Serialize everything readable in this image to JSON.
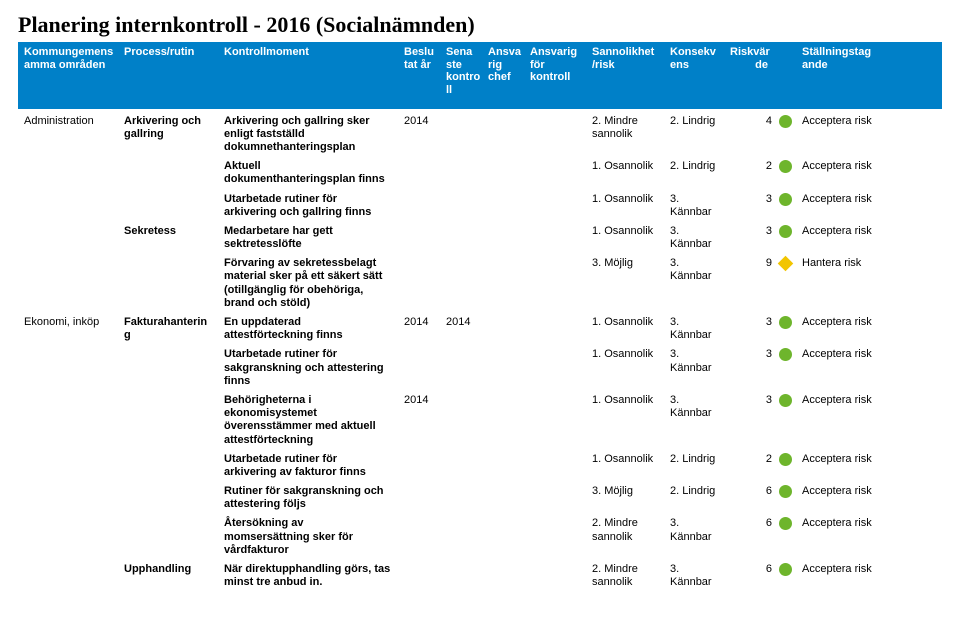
{
  "title": "Planering internkontroll - 2016 (Socialnämnden)",
  "colors": {
    "header_bg": "#0080c8",
    "green": "#6eb52c",
    "yellow": "#f2c500"
  },
  "headers": {
    "area": "Kommungemens\namma områden",
    "proc": "Process/rutin",
    "moment": "Kontrollmoment",
    "year": "Beslu\ntat år",
    "sena": "Sena\nste\nkontro\nll",
    "ansr": "Ansva\nrig\nchef",
    "ansf": "Ansvarig\nför\nkontroll",
    "sann": "Sannolikhet\n/risk",
    "kons": "Konsekv\nens",
    "riskv": "Riskvär\nde",
    "stall": "Ställningstag\nande"
  },
  "rows": [
    {
      "area": "Administration",
      "proc": "Arkivering och gallring",
      "moment": "Arkivering och gallring sker enligt fastställd dokumnethanteringsplan",
      "year": "2014",
      "sena": "",
      "ansr": "",
      "ansf": "",
      "sann": "2. Mindre sannolik",
      "kons": "2. Lindrig",
      "riskv": "4",
      "ind": {
        "shape": "circle",
        "color": "green"
      },
      "stall": "Acceptera risk"
    },
    {
      "area": "",
      "proc": "",
      "moment": "Aktuell dokumenthanteringsplan finns",
      "year": "",
      "sena": "",
      "ansr": "",
      "ansf": "",
      "sann": "1. Osannolik",
      "kons": "2. Lindrig",
      "riskv": "2",
      "ind": {
        "shape": "circle",
        "color": "green"
      },
      "stall": "Acceptera risk"
    },
    {
      "area": "",
      "proc": "",
      "moment": "Utarbetade rutiner för arkivering och gallring finns",
      "year": "",
      "sena": "",
      "ansr": "",
      "ansf": "",
      "sann": "1. Osannolik",
      "kons": "3. Kännbar",
      "riskv": "3",
      "ind": {
        "shape": "circle",
        "color": "green"
      },
      "stall": "Acceptera risk"
    },
    {
      "area": "",
      "proc": "Sekretess",
      "moment": "Medarbetare har gett sektretesslöfte",
      "year": "",
      "sena": "",
      "ansr": "",
      "ansf": "",
      "sann": "1. Osannolik",
      "kons": "3. Kännbar",
      "riskv": "3",
      "ind": {
        "shape": "circle",
        "color": "green"
      },
      "stall": "Acceptera risk"
    },
    {
      "area": "",
      "proc": "",
      "moment": "Förvaring av sekretessbelagt material sker på ett säkert sätt (otillgänglig för obehöriga, brand och stöld)",
      "year": "",
      "sena": "",
      "ansr": "",
      "ansf": "",
      "sann": "3. Möjlig",
      "kons": "3. Kännbar",
      "riskv": "9",
      "ind": {
        "shape": "diamond",
        "color": "yellow"
      },
      "stall": "Hantera risk"
    },
    {
      "area": "Ekonomi, inköp",
      "proc": "Fakturahanterin\ng",
      "moment": "En uppdaterad attestförteckning finns",
      "year": "2014",
      "sena": "2014",
      "ansr": "",
      "ansf": "",
      "sann": "1. Osannolik",
      "kons": "3. Kännbar",
      "riskv": "3",
      "ind": {
        "shape": "circle",
        "color": "green"
      },
      "stall": "Acceptera risk"
    },
    {
      "area": "",
      "proc": "",
      "moment": "Utarbetade rutiner för sakgranskning och attestering finns",
      "year": "",
      "sena": "",
      "ansr": "",
      "ansf": "",
      "sann": "1. Osannolik",
      "kons": "3. Kännbar",
      "riskv": "3",
      "ind": {
        "shape": "circle",
        "color": "green"
      },
      "stall": "Acceptera risk"
    },
    {
      "area": "",
      "proc": "",
      "moment": "Behörigheterna i ekonomisystemet överensstämmer med aktuell attestförteckning",
      "year": "2014",
      "sena": "",
      "ansr": "",
      "ansf": "",
      "sann": "1. Osannolik",
      "kons": "3. Kännbar",
      "riskv": "3",
      "ind": {
        "shape": "circle",
        "color": "green"
      },
      "stall": "Acceptera risk"
    },
    {
      "area": "",
      "proc": "",
      "moment": "Utarbetade rutiner för arkivering av fakturor finns",
      "year": "",
      "sena": "",
      "ansr": "",
      "ansf": "",
      "sann": "1. Osannolik",
      "kons": "2. Lindrig",
      "riskv": "2",
      "ind": {
        "shape": "circle",
        "color": "green"
      },
      "stall": "Acceptera risk"
    },
    {
      "area": "",
      "proc": "",
      "moment": "Rutiner för sakgranskning och attestering följs",
      "year": "",
      "sena": "",
      "ansr": "",
      "ansf": "",
      "sann": "3. Möjlig",
      "kons": "2. Lindrig",
      "riskv": "6",
      "ind": {
        "shape": "circle",
        "color": "green"
      },
      "stall": "Acceptera risk"
    },
    {
      "area": "",
      "proc": "",
      "moment": "Återsökning av momsersättning sker för vårdfakturor",
      "year": "",
      "sena": "",
      "ansr": "",
      "ansf": "",
      "sann": "2. Mindre sannolik",
      "kons": "3. Kännbar",
      "riskv": "6",
      "ind": {
        "shape": "circle",
        "color": "green"
      },
      "stall": "Acceptera risk"
    },
    {
      "area": "",
      "proc": "Upphandling",
      "moment": "När direktupphandling görs, tas minst tre anbud in.",
      "year": "",
      "sena": "",
      "ansr": "",
      "ansf": "",
      "sann": "2. Mindre sannolik",
      "kons": "3. Kännbar",
      "riskv": "6",
      "ind": {
        "shape": "circle",
        "color": "green"
      },
      "stall": "Acceptera risk"
    }
  ]
}
